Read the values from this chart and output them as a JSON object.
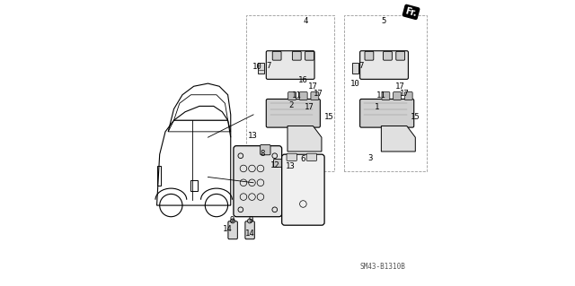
{
  "bg_color": "#ffffff",
  "diagram_code": "SM43-B1310B",
  "fr_label": "Fr.",
  "label_fontsize": 6.5,
  "figsize": [
    6.4,
    3.19
  ],
  "dpi": 100
}
